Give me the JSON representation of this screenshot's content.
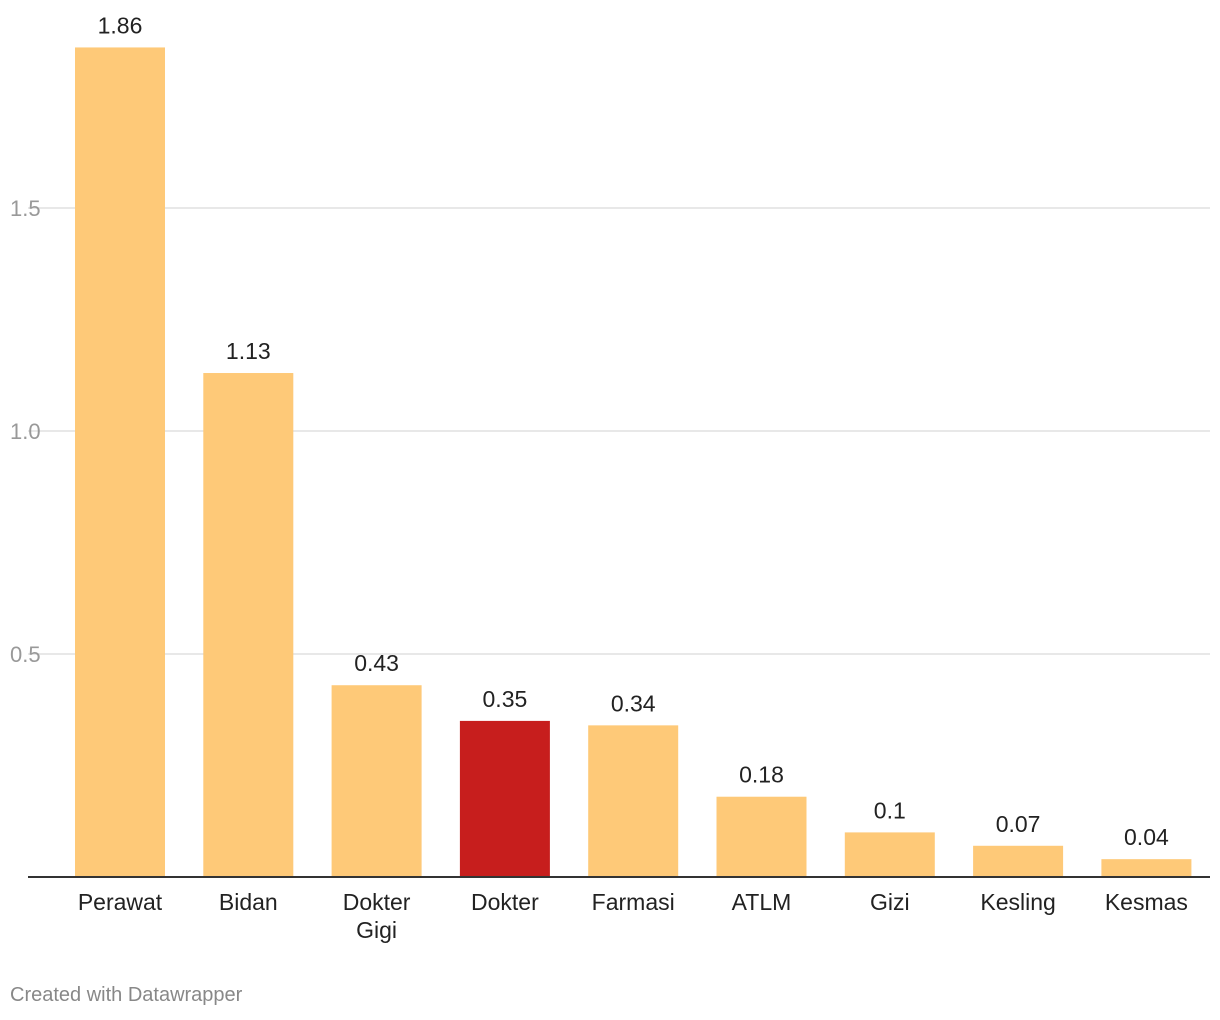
{
  "chart_data": {
    "type": "bar",
    "categories": [
      "Perawat",
      "Bidan",
      "Dokter Gigi",
      "Dokter",
      "Farmasi",
      "ATLM",
      "Gizi",
      "Kesling",
      "Kesmas"
    ],
    "category_lines": [
      [
        "Perawat"
      ],
      [
        "Bidan"
      ],
      [
        "Dokter",
        "Gigi"
      ],
      [
        "Dokter"
      ],
      [
        "Farmasi"
      ],
      [
        "ATLM"
      ],
      [
        "Gizi"
      ],
      [
        "Kesling"
      ],
      [
        "Kesmas"
      ]
    ],
    "values": [
      1.86,
      1.13,
      0.43,
      0.35,
      0.34,
      0.18,
      0.1,
      0.07,
      0.04
    ],
    "value_labels": [
      "1.86",
      "1.13",
      "0.43",
      "0.35",
      "0.34",
      "0.18",
      "0.1",
      "0.07",
      "0.04"
    ],
    "highlight_category": "Dokter",
    "ylim": [
      0,
      1.9
    ],
    "yticks": [
      0.5,
      1.0,
      1.5
    ],
    "ytick_labels": [
      "0.5",
      "1.0",
      "1.5"
    ],
    "grid": true,
    "colors": {
      "bar": "#fec978",
      "highlight": "#c71e1d",
      "grid": "#e0e0e0",
      "axis": "#333333",
      "tick_text": "#999999",
      "label_text": "#222222"
    }
  },
  "footer": {
    "credit": "Created with Datawrapper"
  }
}
